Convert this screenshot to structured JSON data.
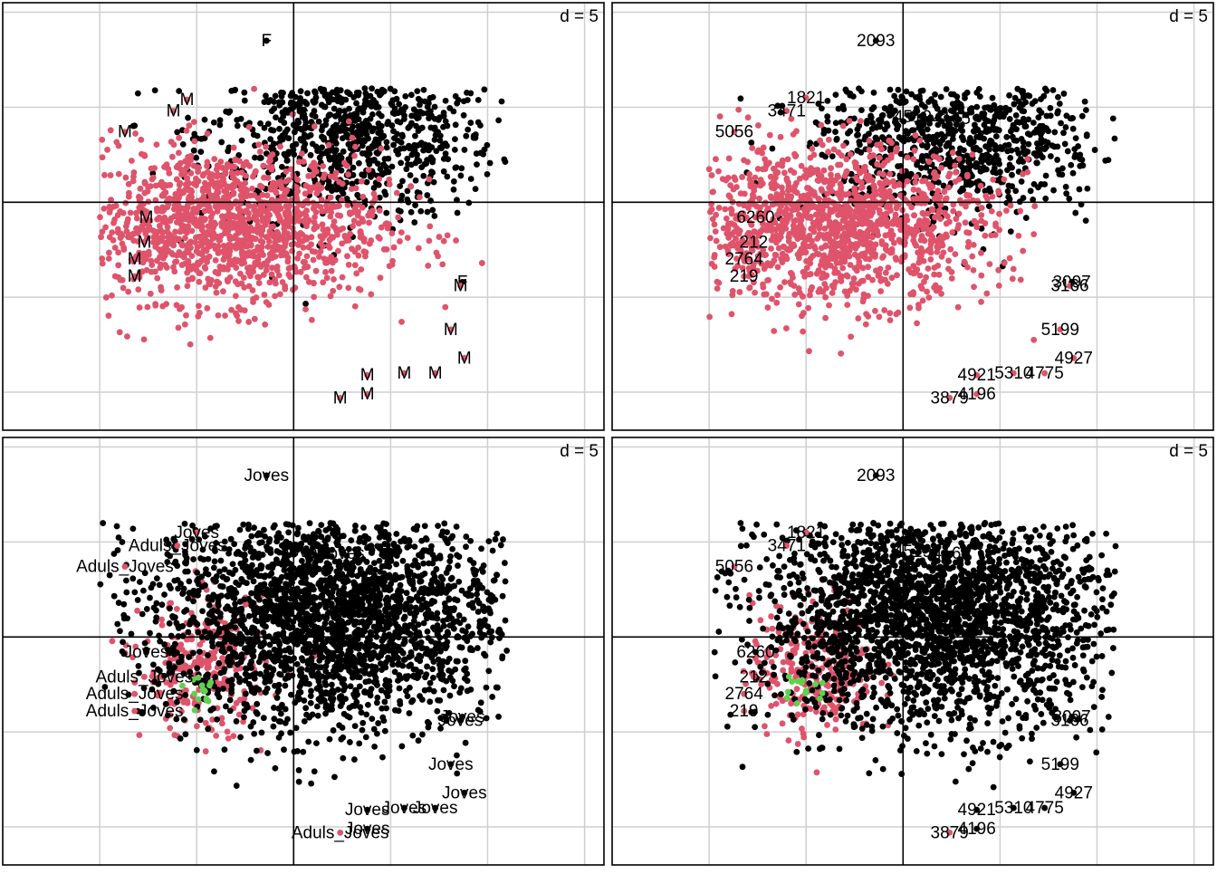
{
  "colors": {
    "black": "#000000",
    "red": "#DF536B",
    "green": "#61D04F",
    "grid": "#cfcfcf"
  },
  "chart_data": [
    {
      "type": "scatter",
      "d_label": "d = 5",
      "xlim": [
        -15,
        16
      ],
      "ylim": [
        -12,
        10.5
      ],
      "grid_step": 5,
      "grid": true,
      "cloud": {
        "black_center": [
          2.8,
          3.5
        ],
        "black_spread": [
          3.8,
          2.2
        ],
        "red_center": [
          -3.5,
          -1.2
        ],
        "red_spread": [
          4.0,
          2.0
        ],
        "black_count": 900,
        "red_count": 1400,
        "black_drawn_first": true
      },
      "labeled_points": [
        {
          "x": -1.4,
          "y": 8.5,
          "label": "F",
          "color": "black"
        },
        {
          "x": -5.5,
          "y": 5.4,
          "label": "M",
          "color": "red"
        },
        {
          "x": -6.2,
          "y": 4.8,
          "label": "M",
          "color": "red"
        },
        {
          "x": -8.7,
          "y": 3.7,
          "label": "M",
          "color": "red"
        },
        {
          "x": 0.5,
          "y": 4.5,
          "label": "F",
          "color": "black"
        },
        {
          "x": 2.5,
          "y": 4.4,
          "label": "F",
          "color": "black"
        },
        {
          "x": -7.6,
          "y": -0.8,
          "label": "M",
          "color": "red"
        },
        {
          "x": -7.7,
          "y": -2.1,
          "label": "M",
          "color": "red"
        },
        {
          "x": -8.2,
          "y": -3.0,
          "label": "M",
          "color": "red"
        },
        {
          "x": -8.2,
          "y": -3.9,
          "label": "M",
          "color": "red"
        },
        {
          "x": 8.7,
          "y": -4.2,
          "label": "F",
          "color": "black"
        },
        {
          "x": 8.6,
          "y": -4.4,
          "label": "M",
          "color": "red"
        },
        {
          "x": 8.1,
          "y": -6.7,
          "label": "M",
          "color": "red"
        },
        {
          "x": 8.8,
          "y": -8.2,
          "label": "M",
          "color": "red"
        },
        {
          "x": 3.8,
          "y": -9.1,
          "label": "M",
          "color": "red"
        },
        {
          "x": 5.7,
          "y": -9.0,
          "label": "M",
          "color": "red"
        },
        {
          "x": 7.3,
          "y": -9.0,
          "label": "M",
          "color": "red"
        },
        {
          "x": 2.4,
          "y": -10.3,
          "label": "M",
          "color": "red"
        },
        {
          "x": 3.8,
          "y": -10.1,
          "label": "M",
          "color": "red"
        }
      ]
    },
    {
      "type": "scatter",
      "d_label": "d = 5",
      "xlim": [
        -15,
        16
      ],
      "ylim": [
        -12,
        10.5
      ],
      "grid_step": 5,
      "grid": true,
      "cloud": {
        "black_center": [
          2.8,
          3.5
        ],
        "black_spread": [
          3.8,
          2.2
        ],
        "red_center": [
          -3.5,
          -1.2
        ],
        "red_spread": [
          4.0,
          2.0
        ],
        "black_count": 900,
        "red_count": 1400,
        "black_drawn_first": true
      },
      "labeled_points": [
        {
          "x": -1.4,
          "y": 8.5,
          "label": "2093",
          "color": "black"
        },
        {
          "x": -5.0,
          "y": 5.5,
          "label": "1821",
          "color": "red"
        },
        {
          "x": -6.0,
          "y": 4.8,
          "label": "3471",
          "color": "red"
        },
        {
          "x": -8.7,
          "y": 3.7,
          "label": "5056",
          "color": "red"
        },
        {
          "x": 0.5,
          "y": 4.5,
          "label": "4519",
          "color": "black"
        },
        {
          "x": 2.5,
          "y": 4.4,
          "label": "4165",
          "color": "black"
        },
        {
          "x": -7.6,
          "y": -0.8,
          "label": "6260",
          "color": "red"
        },
        {
          "x": -7.7,
          "y": -2.1,
          "label": "212",
          "color": "red"
        },
        {
          "x": -8.2,
          "y": -3.0,
          "label": "2764",
          "color": "red"
        },
        {
          "x": -8.2,
          "y": -3.9,
          "label": "219",
          "color": "red"
        },
        {
          "x": 8.7,
          "y": -4.2,
          "label": "3097",
          "color": "black"
        },
        {
          "x": 8.6,
          "y": -4.4,
          "label": "3166",
          "color": "red"
        },
        {
          "x": 8.1,
          "y": -6.7,
          "label": "5199",
          "color": "red"
        },
        {
          "x": 8.8,
          "y": -8.2,
          "label": "4927",
          "color": "red"
        },
        {
          "x": 3.8,
          "y": -9.1,
          "label": "4921",
          "color": "red"
        },
        {
          "x": 5.7,
          "y": -9.0,
          "label": "5310",
          "color": "red"
        },
        {
          "x": 7.3,
          "y": -9.0,
          "label": "4775",
          "color": "red"
        },
        {
          "x": 2.4,
          "y": -10.3,
          "label": "3879",
          "color": "red"
        },
        {
          "x": 3.8,
          "y": -10.1,
          "label": "4196",
          "color": "red"
        }
      ]
    },
    {
      "type": "scatter",
      "d_label": "d = 5",
      "xlim": [
        -15,
        16
      ],
      "ylim": [
        -12,
        10.5
      ],
      "grid_step": 5,
      "grid": true,
      "cloud": {
        "black_center": [
          1.8,
          1.2
        ],
        "black_spread": [
          4.5,
          3.0
        ],
        "red_center": [
          -4.6,
          -1.6
        ],
        "red_spread": [
          1.6,
          1.8
        ],
        "black_count": 2600,
        "red_count": 260,
        "green_count": 14,
        "green_center": [
          -4.9,
          -2.7
        ],
        "green_spread": [
          0.6,
          0.5
        ],
        "black_drawn_first": false
      },
      "labeled_points": [
        {
          "x": -1.4,
          "y": 8.5,
          "label": "Joves",
          "color": "black"
        },
        {
          "x": -5.0,
          "y": 5.5,
          "label": "Joves",
          "color": "red"
        },
        {
          "x": -6.0,
          "y": 4.8,
          "label": "Aduls_Joves",
          "color": "red"
        },
        {
          "x": -8.7,
          "y": 3.7,
          "label": "Aduls_Joves",
          "color": "red"
        },
        {
          "x": 0.5,
          "y": 4.5,
          "label": "Joves",
          "color": "black"
        },
        {
          "x": 2.5,
          "y": 4.4,
          "label": "Joves",
          "color": "black"
        },
        {
          "x": -7.6,
          "y": -0.8,
          "label": "Joves",
          "color": "black"
        },
        {
          "x": -7.7,
          "y": -2.1,
          "label": "Aduls_Joves",
          "color": "red"
        },
        {
          "x": -8.2,
          "y": -3.0,
          "label": "Aduls_Joves",
          "color": "red"
        },
        {
          "x": -8.2,
          "y": -3.9,
          "label": "Aduls_Joves",
          "color": "red"
        },
        {
          "x": 8.7,
          "y": -4.2,
          "label": "Joves",
          "color": "black"
        },
        {
          "x": 8.6,
          "y": -4.4,
          "label": "Joves",
          "color": "black"
        },
        {
          "x": 8.1,
          "y": -6.7,
          "label": "Joves",
          "color": "black"
        },
        {
          "x": 8.8,
          "y": -8.2,
          "label": "Joves",
          "color": "black"
        },
        {
          "x": 3.8,
          "y": -9.1,
          "label": "Joves",
          "color": "black"
        },
        {
          "x": 5.7,
          "y": -9.0,
          "label": "Joves",
          "color": "black"
        },
        {
          "x": 7.3,
          "y": -9.0,
          "label": "Joves",
          "color": "black"
        },
        {
          "x": 2.4,
          "y": -10.3,
          "label": "Aduls_Joves",
          "color": "red"
        },
        {
          "x": 3.8,
          "y": -10.1,
          "label": "Joves",
          "color": "black"
        }
      ]
    },
    {
      "type": "scatter",
      "d_label": "d = 5",
      "xlim": [
        -15,
        16
      ],
      "ylim": [
        -12,
        10.5
      ],
      "grid_step": 5,
      "grid": true,
      "cloud": {
        "black_center": [
          1.8,
          1.2
        ],
        "black_spread": [
          4.5,
          3.0
        ],
        "red_center": [
          -4.6,
          -1.6
        ],
        "red_spread": [
          1.6,
          1.8
        ],
        "black_count": 2600,
        "red_count": 260,
        "green_count": 14,
        "green_center": [
          -4.9,
          -2.7
        ],
        "green_spread": [
          0.6,
          0.5
        ],
        "black_drawn_first": false
      },
      "labeled_points": [
        {
          "x": -1.4,
          "y": 8.5,
          "label": "2093",
          "color": "black"
        },
        {
          "x": -5.0,
          "y": 5.5,
          "label": "1821",
          "color": "red"
        },
        {
          "x": -6.0,
          "y": 4.8,
          "label": "3471",
          "color": "red"
        },
        {
          "x": -8.7,
          "y": 3.7,
          "label": "5056",
          "color": "red"
        },
        {
          "x": 0.5,
          "y": 4.5,
          "label": "4519",
          "color": "black"
        },
        {
          "x": 2.5,
          "y": 4.4,
          "label": "4165",
          "color": "black"
        },
        {
          "x": -7.6,
          "y": -0.8,
          "label": "6260",
          "color": "black"
        },
        {
          "x": -7.7,
          "y": -2.1,
          "label": "212",
          "color": "red"
        },
        {
          "x": -8.2,
          "y": -3.0,
          "label": "2764",
          "color": "red"
        },
        {
          "x": -8.2,
          "y": -3.9,
          "label": "219",
          "color": "red"
        },
        {
          "x": 8.7,
          "y": -4.2,
          "label": "3097",
          "color": "black"
        },
        {
          "x": 8.6,
          "y": -4.4,
          "label": "3166",
          "color": "black"
        },
        {
          "x": 8.1,
          "y": -6.7,
          "label": "5199",
          "color": "black"
        },
        {
          "x": 8.8,
          "y": -8.2,
          "label": "4927",
          "color": "black"
        },
        {
          "x": 3.8,
          "y": -9.1,
          "label": "4921",
          "color": "black"
        },
        {
          "x": 5.7,
          "y": -9.0,
          "label": "5310",
          "color": "black"
        },
        {
          "x": 7.3,
          "y": -9.0,
          "label": "4775",
          "color": "black"
        },
        {
          "x": 2.4,
          "y": -10.3,
          "label": "3879",
          "color": "red"
        },
        {
          "x": 3.8,
          "y": -10.1,
          "label": "4196",
          "color": "black"
        }
      ]
    }
  ]
}
